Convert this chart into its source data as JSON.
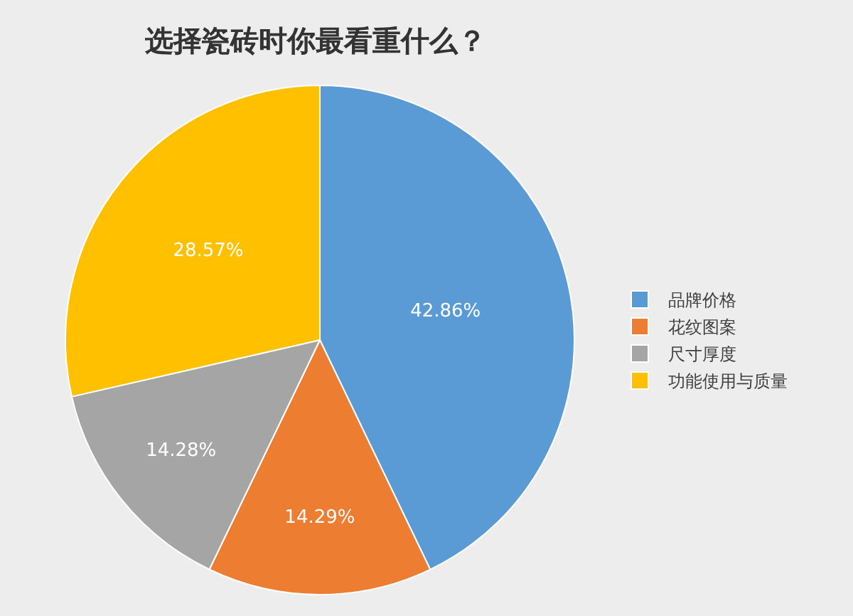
{
  "chart_data": {
    "type": "pie",
    "title": "选择瓷砖时你最看重什么？",
    "categories": [
      "品牌价格",
      "花纹图案",
      "尺寸厚度",
      "功能使用与质量"
    ],
    "values": [
      42.86,
      14.29,
      14.28,
      28.57
    ],
    "value_labels": [
      "42.86%",
      "14.29%",
      "14.28%",
      "28.57%"
    ],
    "colors": [
      "#5b9bd5",
      "#ed7d31",
      "#a5a5a5",
      "#ffc000"
    ],
    "legend": "right"
  }
}
